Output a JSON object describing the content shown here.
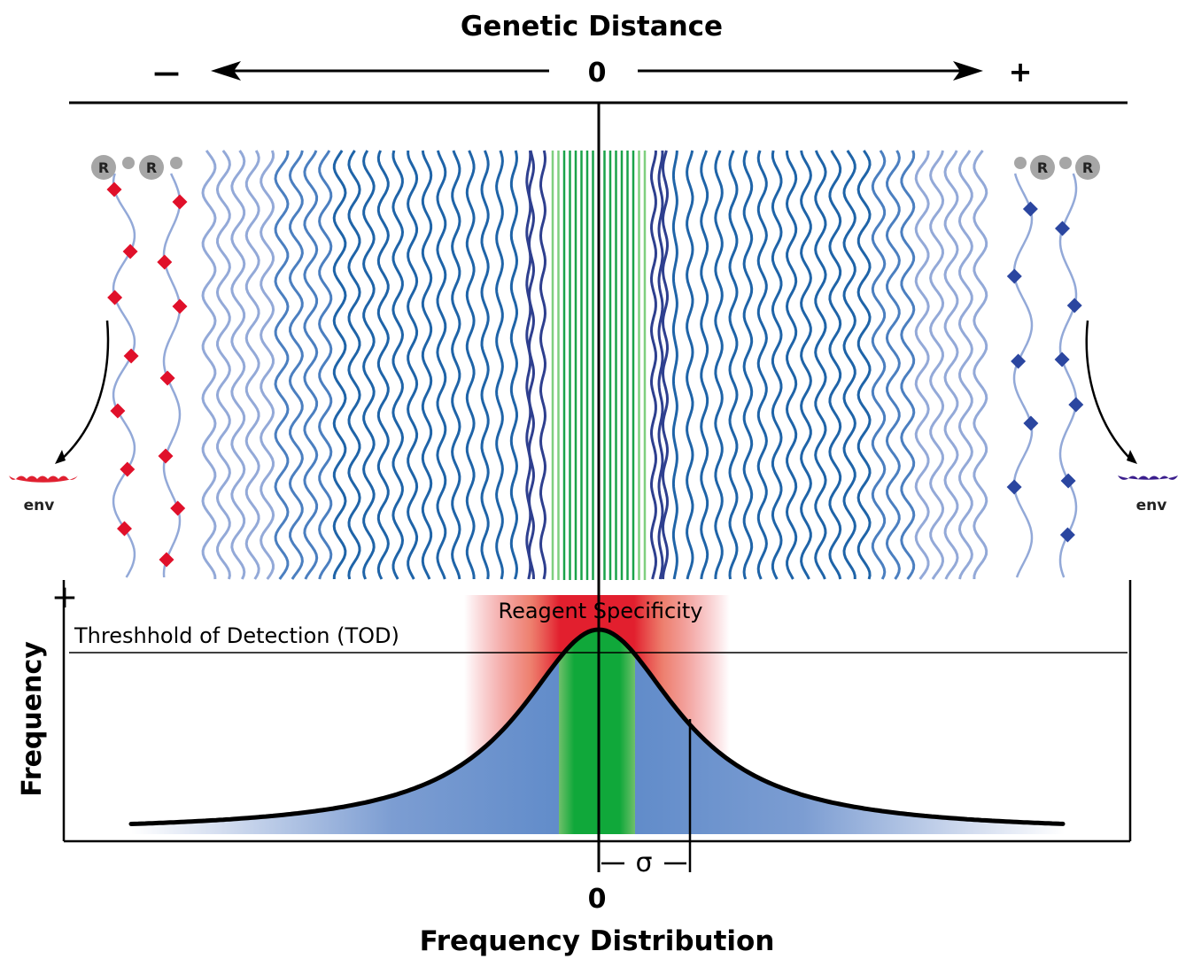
{
  "top": {
    "title": "Genetic Distance",
    "minus_label": "—",
    "zero_label": "0",
    "plus_label": "+"
  },
  "receptors": {
    "left": [
      "R",
      "R"
    ],
    "right": [
      "R",
      "R"
    ]
  },
  "env": {
    "left_label": "env",
    "right_label": "env",
    "left_color": "#e02030",
    "right_color": "#3a1d8c"
  },
  "plot": {
    "y_label": "Frequency",
    "y_plus": "+",
    "tod_label": "Threshhold of Detection (TOD)",
    "reagent_label": "Reagent Specificity",
    "sigma_label": "σ",
    "x_zero_label": "0",
    "x_title": "Frequency Distribution"
  },
  "colors": {
    "strand_light": "#93a9d8",
    "strand_mid": "#1f64a8",
    "strand_dark": "#2e3f8f",
    "strand_green": "#1aa34a",
    "strand_green_light": "#7fcf7f",
    "curve_fill": "#5b88c8",
    "reagent_red": "#e21f2e",
    "center_green": "#10a83a",
    "diamond_red": "#e0102a",
    "diamond_blue": "#2b46a0",
    "receptor_gray": "#a6a6a6"
  }
}
